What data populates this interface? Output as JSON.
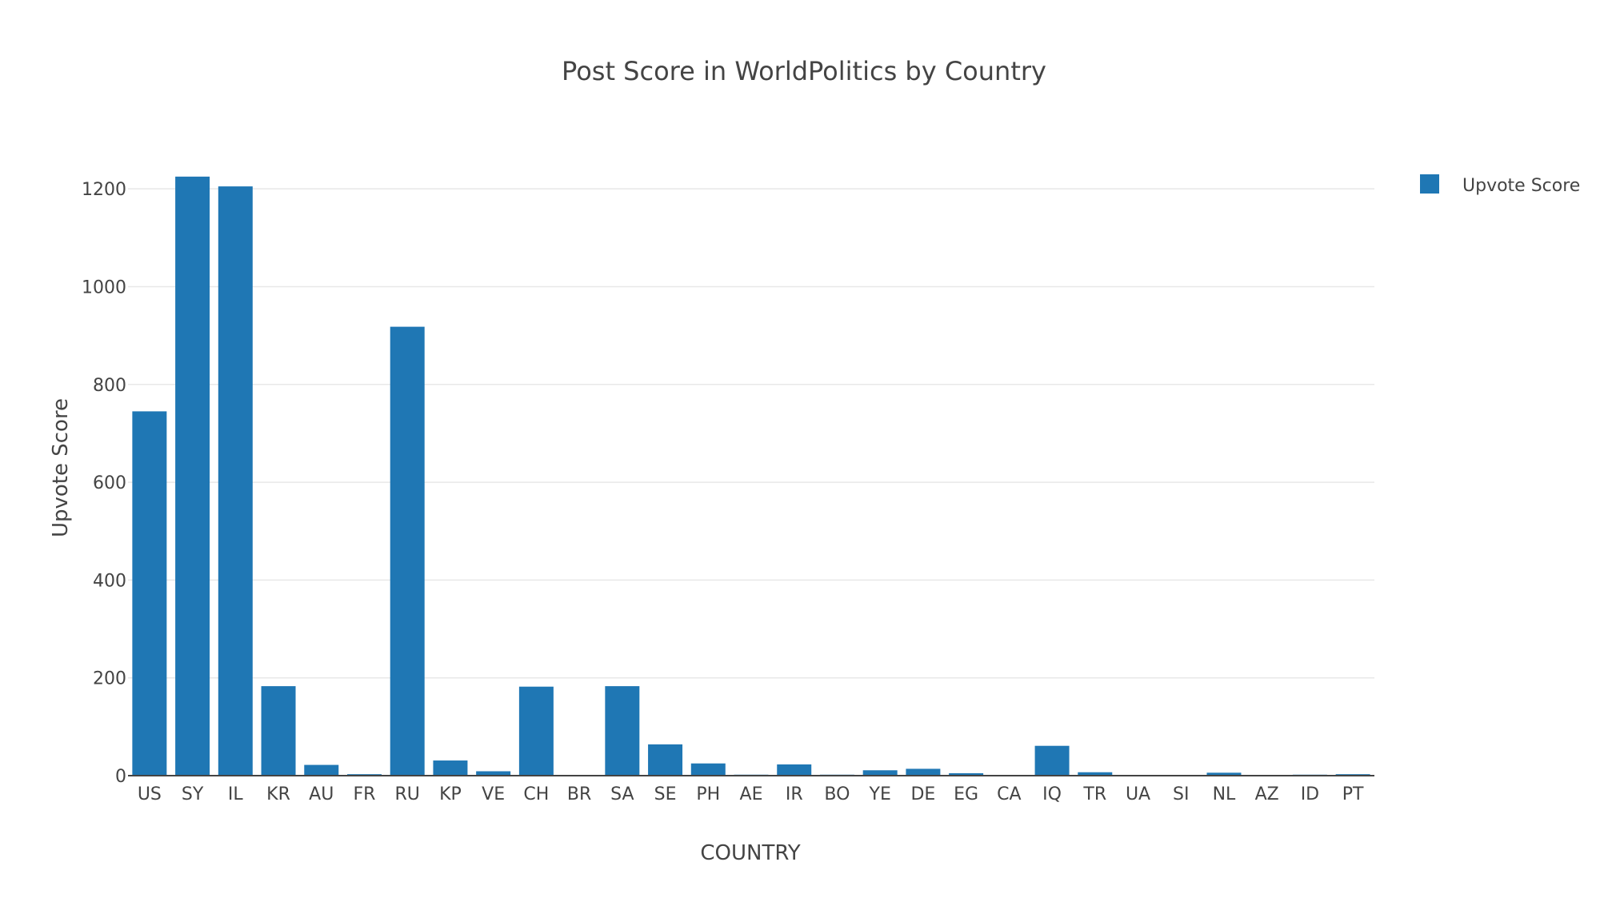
{
  "chart_data": {
    "type": "bar",
    "title": "Post Score in WorldPolitics by Country",
    "xlabel": "COUNTRY",
    "ylabel": "Upvote Score",
    "categories": [
      "US",
      "SY",
      "IL",
      "KR",
      "AU",
      "FR",
      "RU",
      "KP",
      "VE",
      "CH",
      "BR",
      "SA",
      "SE",
      "PH",
      "AE",
      "IR",
      "BO",
      "YE",
      "DE",
      "EG",
      "CA",
      "IQ",
      "TR",
      "UA",
      "SI",
      "NL",
      "AZ",
      "ID",
      "PT"
    ],
    "series": [
      {
        "name": "Upvote Score",
        "values": [
          745,
          1225,
          1205,
          183,
          22,
          3,
          918,
          31,
          9,
          182,
          1,
          183,
          64,
          25,
          2,
          23,
          2,
          11,
          14,
          5,
          1,
          61,
          7,
          1,
          1,
          6,
          1,
          2,
          3
        ]
      }
    ],
    "ylim": [
      0,
      1300
    ],
    "yticks": [
      0,
      200,
      400,
      600,
      800,
      1000,
      1200
    ],
    "grid": true,
    "legend_position": "top-right",
    "bar_color": "#1f77b4"
  }
}
